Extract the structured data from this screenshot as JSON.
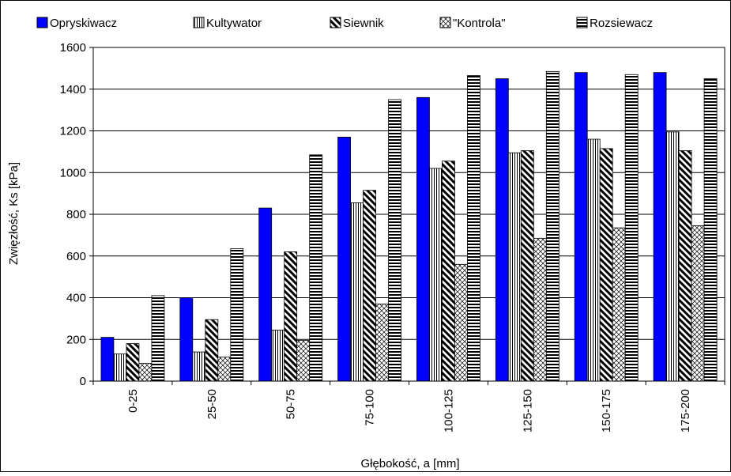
{
  "chart_data": {
    "type": "bar",
    "title": "",
    "xlabel": "Głębokość, a [mm]",
    "ylabel": "Zwięzłość, Ks [kPa]",
    "ylim": [
      0,
      1600
    ],
    "yticks": [
      0,
      200,
      400,
      600,
      800,
      1000,
      1200,
      1400,
      1600
    ],
    "grid": "horizontal",
    "legend_position": "top",
    "categories": [
      "0-25",
      "25-50",
      "50-75",
      "75-100",
      "100-125",
      "125-150",
      "150-175",
      "175-200"
    ],
    "series": [
      {
        "name": "Opryskiwacz",
        "pattern": "solid",
        "color": "#0000ff",
        "values": [
          210,
          400,
          830,
          1170,
          1360,
          1450,
          1480,
          1480
        ]
      },
      {
        "name": "Kultywator",
        "pattern": "vertical",
        "color": "#000000",
        "values": [
          130,
          140,
          245,
          855,
          1020,
          1095,
          1160,
          1195
        ]
      },
      {
        "name": "Siewnik",
        "pattern": "diagonal",
        "color": "#000000",
        "values": [
          180,
          295,
          620,
          915,
          1055,
          1105,
          1115,
          1105
        ]
      },
      {
        "name": "\"Kontrola\"",
        "pattern": "crosshatch",
        "color": "#000000",
        "values": [
          85,
          115,
          195,
          370,
          560,
          685,
          735,
          745
        ]
      },
      {
        "name": "Rozsiewacz",
        "pattern": "horizontal",
        "color": "#000000",
        "values": [
          410,
          635,
          1085,
          1350,
          1465,
          1485,
          1470,
          1450
        ]
      }
    ]
  }
}
